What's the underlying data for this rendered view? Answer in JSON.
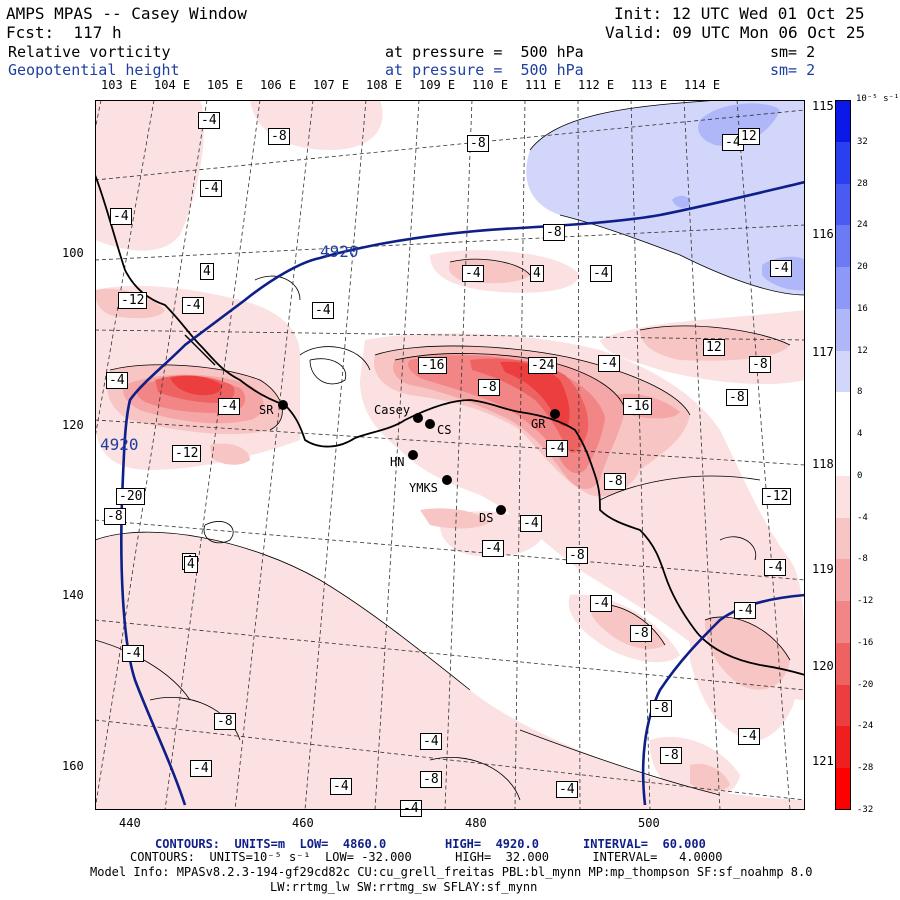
{
  "header": {
    "title": "AMPS MPAS -- Casey Window",
    "init": "Init: 12 UTC Wed 01 Oct 25",
    "fcst": "Fcst:  117 h",
    "valid": "Valid: 09 UTC Mon 06 Oct 25",
    "field1": "Relative vorticity",
    "pressure1": "at pressure =  500 hPa",
    "sm1": "sm= 2",
    "field2": "Geopotential height",
    "pressure2": "at pressure =  500 hPa",
    "sm2": "sm= 2"
  },
  "lon_labels_top": [
    "103 E",
    "104 E",
    "105 E",
    "106 E",
    "107 E",
    "108 E",
    "109 E",
    "110 E",
    "111 E",
    "112 E",
    "113 E",
    "114 E"
  ],
  "lon_labels_right": [
    "115 E",
    "116 E",
    "117 E",
    "118 E",
    "119 E",
    "120 E",
    "121 E"
  ],
  "y_ticks": [
    "100",
    "120",
    "140",
    "160"
  ],
  "x_ticks": [
    "440",
    "460",
    "480",
    "500"
  ],
  "colorbar": {
    "unit": "10⁻⁵ s⁻¹",
    "labels": [
      "32",
      "28",
      "24",
      "20",
      "16",
      "12",
      "8",
      "4",
      "0",
      "-4",
      "-8",
      "-12",
      "-16",
      "-20",
      "-24",
      "-28",
      "-32"
    ],
    "colors": [
      "#0b18e8",
      "#2a3ff0",
      "#4a5bf2",
      "#6c7af4",
      "#8e98f6",
      "#b0b7f8",
      "#d2d6fb",
      "#ffffff",
      "#ffffff",
      "#fbe1e1",
      "#f8c5c5",
      "#f5a6a6",
      "#f28585",
      "#ef6262",
      "#ec3e3e",
      "#f01f1f",
      "#ff0000"
    ]
  },
  "stations": [
    "Casey",
    "CS",
    "HN",
    "YMKS",
    "DS",
    "SR",
    "GR"
  ],
  "contour_values": [
    "4920",
    "4920",
    "-4",
    "-8",
    "-4",
    "-4",
    "4",
    "-12",
    "-4",
    "-4",
    "-8",
    "-4",
    "-4",
    "4",
    "-4",
    "-8",
    "-4",
    "12",
    "-8",
    "-4",
    "-16",
    "-24",
    "-4",
    "-8",
    "-4",
    "-16",
    "-8",
    "-12",
    "-4",
    "-8",
    "-20",
    "-12",
    "-4",
    "-4",
    "-8",
    "-4",
    "4",
    "-4",
    "-8",
    "-4",
    "-8",
    "-4",
    "-4",
    "-8",
    "-4",
    "-8",
    "-4",
    "-8",
    "-4",
    "-4",
    "-8",
    "-4",
    "4",
    "12"
  ],
  "footer": {
    "line1_a": "CONTOURS:  UNITS=m  LOW=  4860.0",
    "line1_b": "HIGH=  4920.0",
    "line1_c": "INTERVAL=  60.000",
    "line2": "CONTOURS:  UNITS=10⁻⁵ s⁻¹  LOW= -32.000      HIGH=  32.000      INTERVAL=   4.0000",
    "model_info": "Model Info: MPASv8.2.3-194-gf29cd82c CU:cu_grell_freitas PBL:bl_mynn MP:mp_thompson SF:sf_noahmp 8.0",
    "model_info2": "LW:rrtmg_lw SW:rrtmg_sw SFLAY:sf_mynn"
  }
}
